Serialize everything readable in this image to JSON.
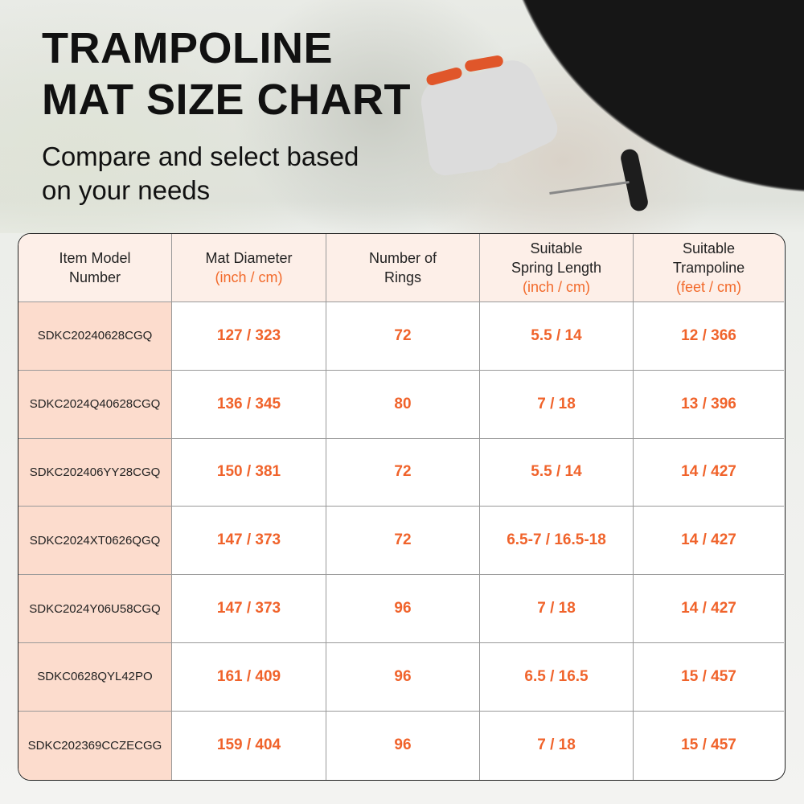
{
  "title_lines": [
    "TRAMPOLINE",
    "MAT SIZE CHART"
  ],
  "subtitle_lines": [
    "Compare and select based",
    "on your needs"
  ],
  "colors": {
    "accent": "#f0632b",
    "model_column_bg": "#fcdccd",
    "header_bg": "#fdefe8"
  },
  "table": {
    "headers": [
      {
        "label": [
          "Item Model",
          "Number"
        ],
        "unit": ""
      },
      {
        "label": [
          "Mat Diameter"
        ],
        "unit": "(inch / cm)"
      },
      {
        "label": [
          "Number of",
          "Rings"
        ],
        "unit": ""
      },
      {
        "label": [
          "Suitable",
          "Spring Length"
        ],
        "unit": "(inch / cm)"
      },
      {
        "label": [
          "Suitable",
          "Trampoline"
        ],
        "unit": "(feet / cm)"
      }
    ],
    "rows": [
      [
        "SDKC20240628CGQ",
        "127 / 323",
        "72",
        "5.5 / 14",
        "12 / 366"
      ],
      [
        "SDKC2024Q40628CGQ",
        "136 / 345",
        "80",
        "7 / 18",
        "13 / 396"
      ],
      [
        "SDKC202406YY28CGQ",
        "150 / 381",
        "72",
        "5.5 / 14",
        "14 / 427"
      ],
      [
        "SDKC2024XT0626QGQ",
        "147 / 373",
        "72",
        "6.5-7 / 16.5-18",
        "14 / 427"
      ],
      [
        "SDKC2024Y06U58CGQ",
        "147 / 373",
        "96",
        "7 / 18",
        "14 / 427"
      ],
      [
        "SDKC0628QYL42PO",
        "161 / 409",
        "96",
        "6.5 / 16.5",
        "15 / 457"
      ],
      [
        "SDKC202369CCZECGG",
        "159 / 404",
        "96",
        "7 / 18",
        "15 / 457"
      ]
    ]
  }
}
